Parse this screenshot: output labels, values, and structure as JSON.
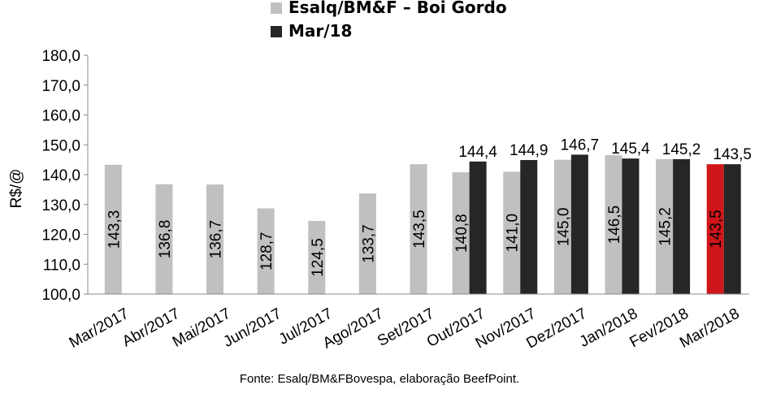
{
  "chart_data": {
    "type": "bar",
    "ylabel": "R$/@",
    "ylim": [
      100,
      180
    ],
    "yticks": [
      "100,0",
      "110,0",
      "120,0",
      "130,0",
      "140,0",
      "150,0",
      "160,0",
      "170,0",
      "180,0"
    ],
    "categories": [
      "Mar/2017",
      "Abr/2017",
      "Mai/2017",
      "Jun/2017",
      "Jul/2017",
      "Ago/2017",
      "Set/2017",
      "Out/2017",
      "Nov/2017",
      "Dez/2017",
      "Jan/2018",
      "Fev/2018",
      "Mar/2018"
    ],
    "series": [
      {
        "name": "Esalq/BM&F – Boi Gordo",
        "color": "#c0c0c0",
        "values": [
          143.3,
          136.8,
          136.7,
          128.7,
          124.5,
          133.7,
          143.5,
          140.8,
          141.0,
          145.0,
          146.5,
          145.2,
          143.5
        ],
        "labels": [
          "143,3",
          "136,8",
          "136,7",
          "128,7",
          "124,5",
          "133,7",
          "143,5",
          "140,8",
          "141,0",
          "145,0",
          "146,5",
          "145,2",
          "143,5"
        ]
      },
      {
        "name": "Mar/18",
        "color": "#262626",
        "values": [
          null,
          null,
          null,
          null,
          null,
          null,
          null,
          144.4,
          144.9,
          146.7,
          145.4,
          145.2,
          143.5
        ],
        "labels": [
          "",
          "",
          "",
          "",
          "",
          "",
          "",
          "144,4",
          "144,9",
          "146,7",
          "145,4",
          "145,2",
          "143,5"
        ]
      }
    ],
    "highlight": {
      "category_index": 12,
      "series_index": 0,
      "color": "#d0161a"
    },
    "grid": false,
    "legend_position": "top"
  },
  "source_note": "Fonte: Esalq/BM&FBovespa, elaboração BeefPoint."
}
